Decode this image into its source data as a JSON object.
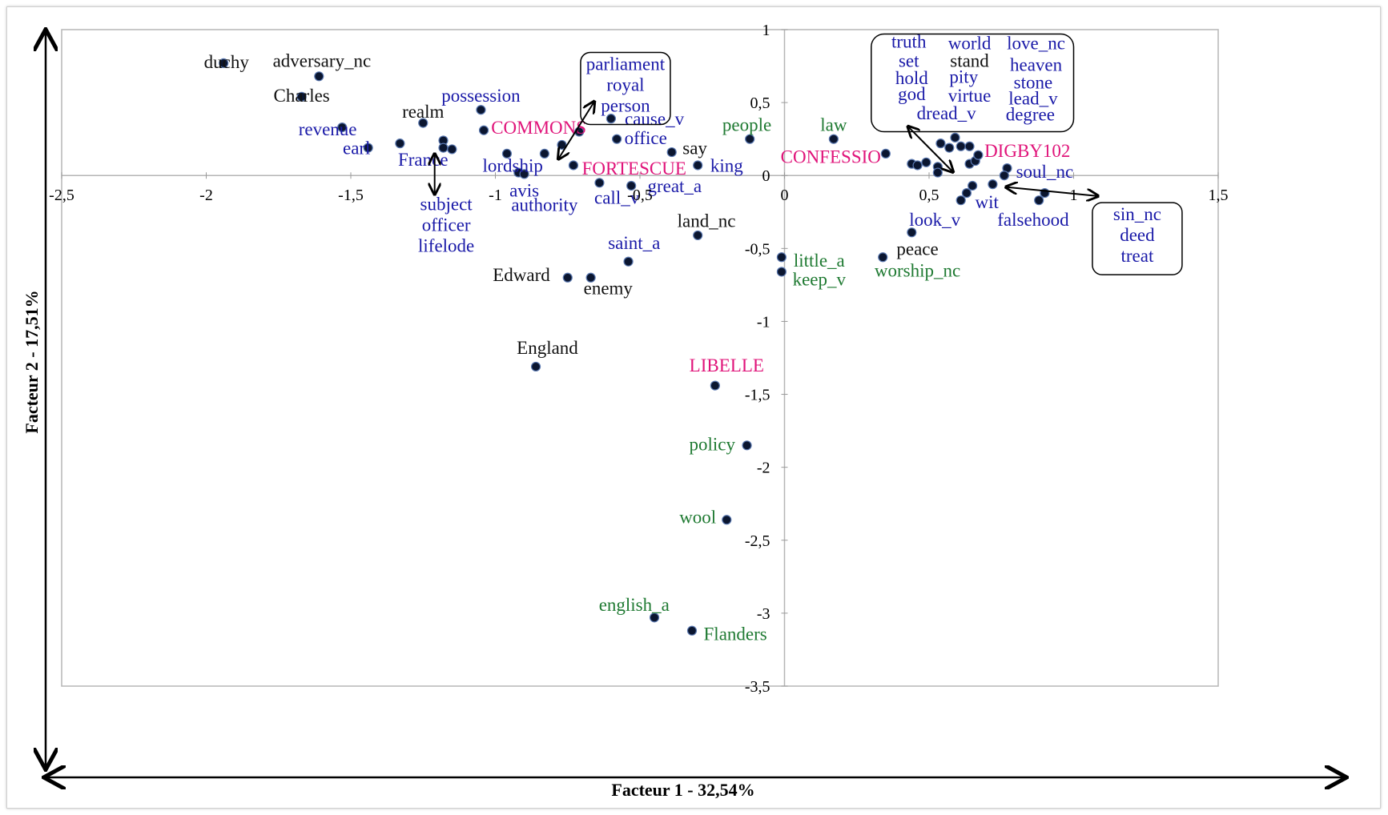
{
  "chart_data": {
    "type": "scatter",
    "title": "",
    "xlabel": "Facteur 1 - 32,54%",
    "ylabel": "Facteur 2 - 17,51%",
    "xlim": [
      -2.5,
      1.5
    ],
    "ylim": [
      -3.5,
      1
    ],
    "x_ticks": [
      -2.5,
      -2,
      -1.5,
      -1,
      -0.5,
      0,
      0.5,
      1,
      1.5
    ],
    "x_tick_labels": [
      "-2,5",
      "-2",
      "-1,5",
      "-1",
      "-0,5",
      "0",
      "0,5",
      "1",
      "1,5"
    ],
    "y_ticks": [
      1,
      0.5,
      0,
      -0.5,
      -1,
      -1.5,
      -2,
      -2.5,
      -3,
      -3.5
    ],
    "y_tick_labels": [
      "1",
      "0,5",
      "0",
      "-0,5",
      "-1",
      "-1,5",
      "-2",
      "-2,5",
      "-3",
      "-3,5"
    ],
    "colors": {
      "black": "#111111",
      "blue": "#1a1aa8",
      "magenta": "#e0147a",
      "green": "#1f7a32",
      "marker": "#0b1630"
    },
    "labels": [
      {
        "text": "duchy",
        "x": -1.93,
        "y": 0.78,
        "color": "black"
      },
      {
        "text": "adversary_nc",
        "x": -1.6,
        "y": 0.79,
        "color": "black"
      },
      {
        "text": "Charles",
        "x": -1.67,
        "y": 0.55,
        "color": "black"
      },
      {
        "text": "realm",
        "x": -1.25,
        "y": 0.44,
        "color": "black"
      },
      {
        "text": "possession",
        "x": -1.05,
        "y": 0.55,
        "color": "blue"
      },
      {
        "text": "revenue",
        "x": -1.58,
        "y": 0.32,
        "color": "blue"
      },
      {
        "text": "earl",
        "x": -1.48,
        "y": 0.19,
        "color": "blue"
      },
      {
        "text": "France",
        "x": -1.25,
        "y": 0.11,
        "color": "blue"
      },
      {
        "text": "COMMONS",
        "x": -0.85,
        "y": 0.33,
        "color": "magenta"
      },
      {
        "text": "lordship",
        "x": -0.94,
        "y": 0.07,
        "color": "blue"
      },
      {
        "text": "avis",
        "x": -0.9,
        "y": -0.1,
        "color": "blue"
      },
      {
        "text": "authority",
        "x": -0.83,
        "y": -0.2,
        "color": "blue"
      },
      {
        "text": "FORTESCUE",
        "x": -0.52,
        "y": 0.05,
        "color": "magenta"
      },
      {
        "text": "cause_v",
        "x": -0.45,
        "y": 0.39,
        "color": "blue"
      },
      {
        "text": "office",
        "x": -0.48,
        "y": 0.26,
        "color": "blue"
      },
      {
        "text": "call_v",
        "x": -0.58,
        "y": -0.15,
        "color": "blue"
      },
      {
        "text": "great_a",
        "x": -0.38,
        "y": -0.07,
        "color": "blue"
      },
      {
        "text": "say",
        "x": -0.31,
        "y": 0.19,
        "color": "black"
      },
      {
        "text": "king",
        "x": -0.2,
        "y": 0.07,
        "color": "blue"
      },
      {
        "text": "people",
        "x": -0.13,
        "y": 0.35,
        "color": "green"
      },
      {
        "text": "law",
        "x": 0.17,
        "y": 0.35,
        "color": "green"
      },
      {
        "text": "CONFESSIO",
        "x": 0.16,
        "y": 0.13,
        "color": "magenta"
      },
      {
        "text": "land_nc",
        "x": -0.27,
        "y": -0.31,
        "color": "black"
      },
      {
        "text": "saint_a",
        "x": -0.52,
        "y": -0.46,
        "color": "blue"
      },
      {
        "text": "Edward",
        "x": -0.91,
        "y": -0.68,
        "color": "black"
      },
      {
        "text": "enemy",
        "x": -0.61,
        "y": -0.77,
        "color": "black"
      },
      {
        "text": "England",
        "x": -0.82,
        "y": -1.18,
        "color": "black"
      },
      {
        "text": "LIBELLE",
        "x": -0.2,
        "y": -1.3,
        "color": "magenta"
      },
      {
        "text": "policy",
        "x": -0.25,
        "y": -1.84,
        "color": "green"
      },
      {
        "text": "wool",
        "x": -0.3,
        "y": -2.34,
        "color": "green"
      },
      {
        "text": "english_a",
        "x": -0.52,
        "y": -2.94,
        "color": "green"
      },
      {
        "text": "Flanders",
        "x": -0.17,
        "y": -3.14,
        "color": "green"
      },
      {
        "text": "little_a",
        "x": 0.12,
        "y": -0.58,
        "color": "green"
      },
      {
        "text": "keep_v",
        "x": 0.12,
        "y": -0.71,
        "color": "green"
      },
      {
        "text": "worship_nc",
        "x": 0.46,
        "y": -0.65,
        "color": "green"
      },
      {
        "text": "peace",
        "x": 0.46,
        "y": -0.5,
        "color": "black"
      },
      {
        "text": "look_v",
        "x": 0.52,
        "y": -0.3,
        "color": "blue"
      },
      {
        "text": "wit",
        "x": 0.7,
        "y": -0.18,
        "color": "blue"
      },
      {
        "text": "falsehood",
        "x": 0.86,
        "y": -0.3,
        "color": "blue"
      },
      {
        "text": "soul_nc",
        "x": 0.9,
        "y": 0.03,
        "color": "blue"
      },
      {
        "text": "DIGBY102",
        "x": 0.84,
        "y": 0.17,
        "color": "magenta"
      }
    ],
    "boxed_groups": [
      {
        "x": -0.55,
        "y": 0.8,
        "color": "blue",
        "lines": [
          "parliament",
          "royal",
          "person"
        ]
      },
      {
        "x": -1.17,
        "y": -0.16,
        "color": "blue",
        "lines": [
          "subject",
          "officer",
          "lifelode"
        ]
      },
      {
        "x": 1.22,
        "y": -0.23,
        "color": "blue",
        "lines": [
          "sin_nc",
          "deed",
          "treat"
        ]
      }
    ],
    "cloud_words": [
      {
        "text": "truth",
        "x": 0.43,
        "y": 0.92,
        "color": "blue"
      },
      {
        "text": "world",
        "x": 0.64,
        "y": 0.91,
        "color": "blue"
      },
      {
        "text": "love_nc",
        "x": 0.87,
        "y": 0.91,
        "color": "blue"
      },
      {
        "text": "set",
        "x": 0.43,
        "y": 0.79,
        "color": "blue"
      },
      {
        "text": "stand",
        "x": 0.64,
        "y": 0.79,
        "color": "black"
      },
      {
        "text": "heaven",
        "x": 0.87,
        "y": 0.76,
        "color": "blue"
      },
      {
        "text": "hold",
        "x": 0.44,
        "y": 0.67,
        "color": "blue"
      },
      {
        "text": "pity",
        "x": 0.62,
        "y": 0.68,
        "color": "blue"
      },
      {
        "text": "stone",
        "x": 0.86,
        "y": 0.64,
        "color": "blue"
      },
      {
        "text": "god",
        "x": 0.44,
        "y": 0.56,
        "color": "blue"
      },
      {
        "text": "virtue",
        "x": 0.64,
        "y": 0.55,
        "color": "blue"
      },
      {
        "text": "lead_v",
        "x": 0.86,
        "y": 0.53,
        "color": "blue"
      },
      {
        "text": "dread_v",
        "x": 0.56,
        "y": 0.43,
        "color": "blue"
      },
      {
        "text": "degree",
        "x": 0.85,
        "y": 0.42,
        "color": "blue"
      }
    ],
    "points": [
      [
        -1.94,
        0.77
      ],
      [
        -1.61,
        0.68
      ],
      [
        -1.67,
        0.54
      ],
      [
        -1.53,
        0.33
      ],
      [
        -1.44,
        0.19
      ],
      [
        -1.33,
        0.22
      ],
      [
        -1.25,
        0.36
      ],
      [
        -1.18,
        0.24
      ],
      [
        -1.18,
        0.19
      ],
      [
        -1.15,
        0.18
      ],
      [
        -1.05,
        0.45
      ],
      [
        -1.04,
        0.31
      ],
      [
        -0.96,
        0.15
      ],
      [
        -0.92,
        0.02
      ],
      [
        -0.9,
        0.01
      ],
      [
        -0.83,
        0.15
      ],
      [
        -0.77,
        0.21
      ],
      [
        -0.71,
        0.3
      ],
      [
        -0.73,
        0.07
      ],
      [
        -0.6,
        0.39
      ],
      [
        -0.58,
        0.25
      ],
      [
        -0.64,
        -0.05
      ],
      [
        -0.53,
        -0.07
      ],
      [
        -0.39,
        0.16
      ],
      [
        -0.3,
        0.07
      ],
      [
        -0.12,
        0.25
      ],
      [
        0.17,
        0.25
      ],
      [
        0.35,
        0.15
      ],
      [
        -0.3,
        -0.41
      ],
      [
        -0.54,
        -0.59
      ],
      [
        -0.75,
        -0.7
      ],
      [
        -0.67,
        -0.7
      ],
      [
        -0.86,
        -1.31
      ],
      [
        -0.24,
        -1.44
      ],
      [
        -0.13,
        -1.85
      ],
      [
        -0.2,
        -2.36
      ],
      [
        -0.45,
        -3.03
      ],
      [
        -0.32,
        -3.12
      ],
      [
        -0.01,
        -0.56
      ],
      [
        -0.01,
        -0.66
      ],
      [
        0.34,
        -0.56
      ],
      [
        0.44,
        -0.39
      ],
      [
        0.44,
        0.08
      ],
      [
        0.46,
        0.07
      ],
      [
        0.49,
        0.09
      ],
      [
        0.53,
        0.06
      ],
      [
        0.53,
        0.02
      ],
      [
        0.54,
        0.22
      ],
      [
        0.57,
        0.19
      ],
      [
        0.59,
        0.26
      ],
      [
        0.61,
        0.2
      ],
      [
        0.64,
        0.2
      ],
      [
        0.64,
        0.08
      ],
      [
        0.66,
        0.1
      ],
      [
        0.67,
        0.14
      ],
      [
        0.61,
        -0.17
      ],
      [
        0.63,
        -0.12
      ],
      [
        0.65,
        -0.07
      ],
      [
        0.72,
        -0.06
      ],
      [
        0.77,
        0.05
      ],
      [
        0.76,
        0.0
      ],
      [
        0.88,
        -0.17
      ],
      [
        0.9,
        -0.12
      ]
    ],
    "arrows": [
      [
        -0.78,
        0.12,
        -0.66,
        0.5
      ],
      [
        -1.21,
        0.14,
        -1.21,
        -0.12
      ],
      [
        0.43,
        0.33,
        0.58,
        0.03
      ],
      [
        0.77,
        -0.08,
        1.08,
        -0.14
      ]
    ]
  }
}
